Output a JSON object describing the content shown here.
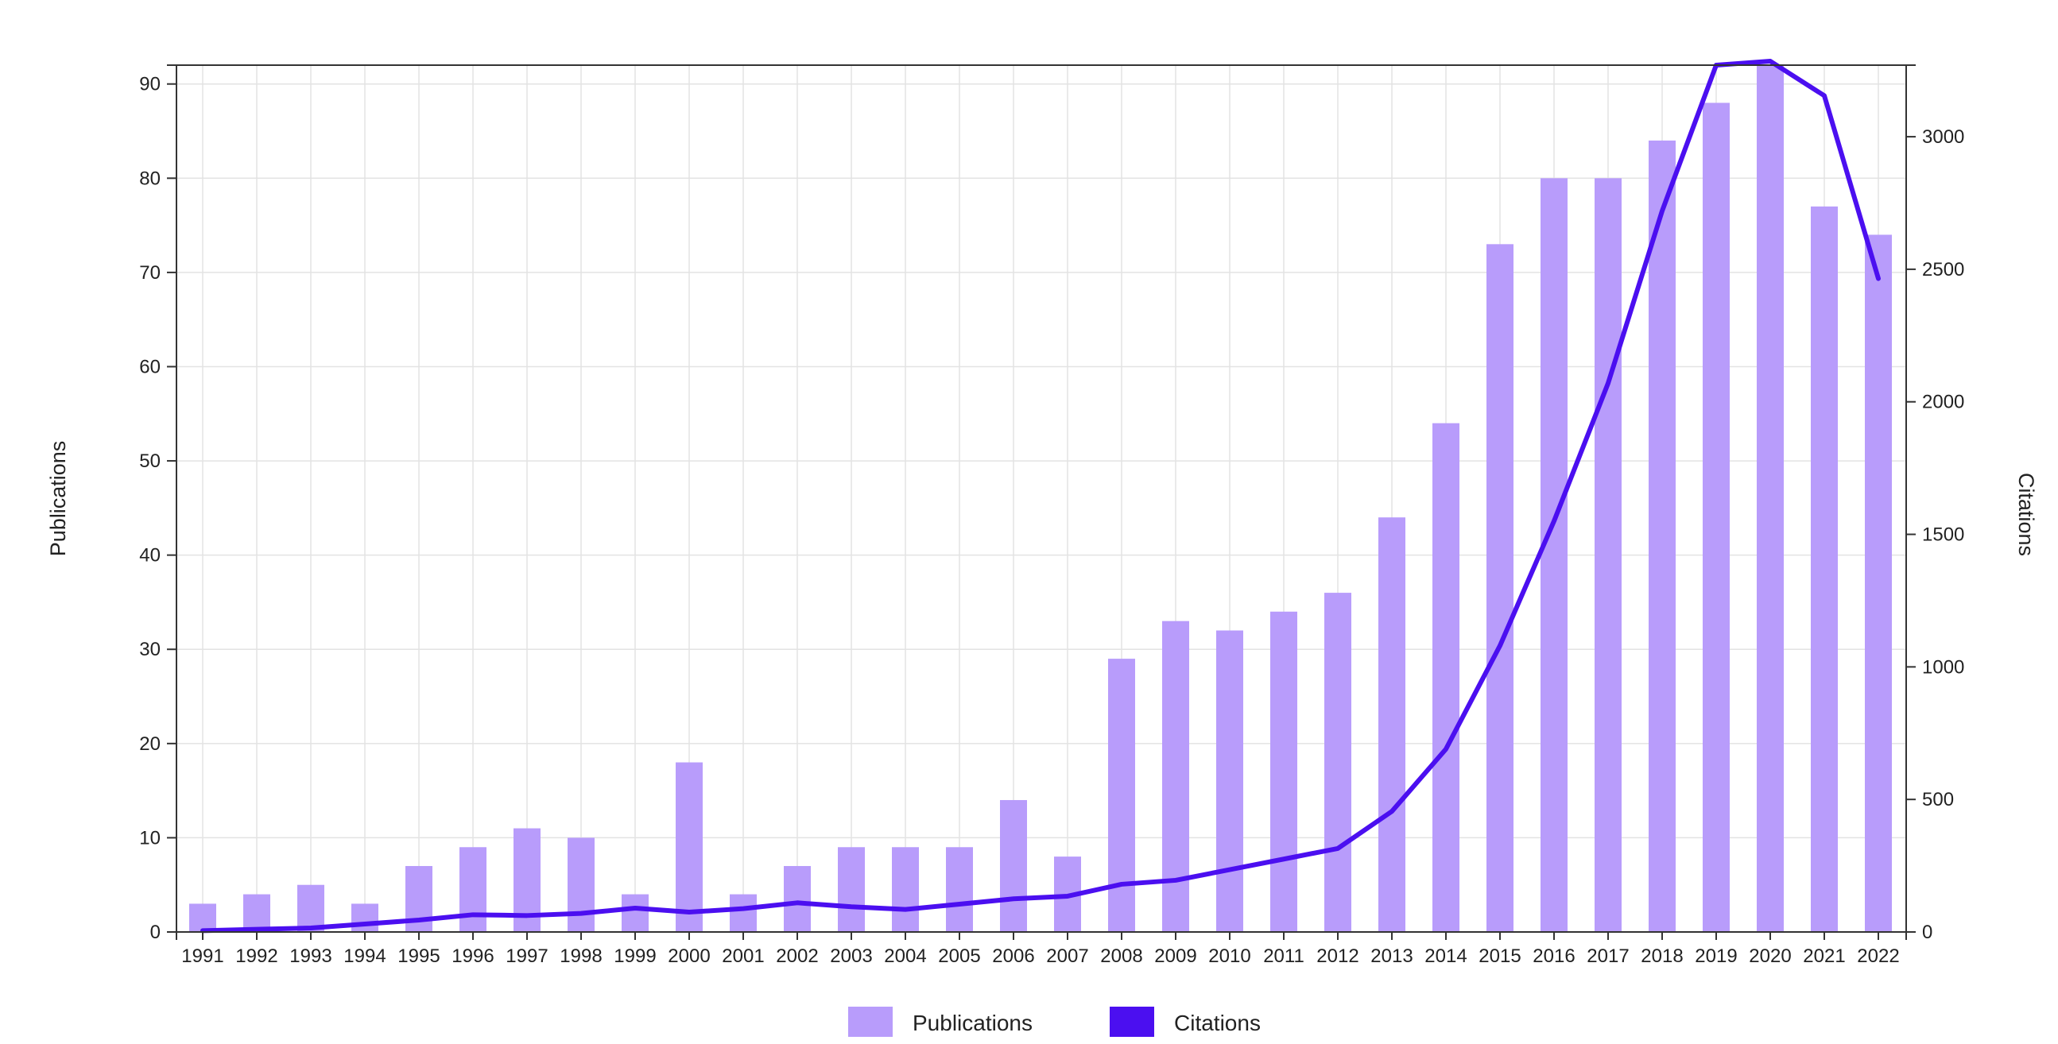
{
  "chart_data": {
    "type": "bar",
    "categories": [
      "1991",
      "1992",
      "1993",
      "1994",
      "1995",
      "1996",
      "1997",
      "1998",
      "1999",
      "2000",
      "2001",
      "2002",
      "2003",
      "2004",
      "2005",
      "2006",
      "2007",
      "2008",
      "2009",
      "2010",
      "2011",
      "2012",
      "2013",
      "2014",
      "2015",
      "2016",
      "2017",
      "2018",
      "2019",
      "2020",
      "2021",
      "2022"
    ],
    "series": [
      {
        "name": "Publications",
        "type": "bar",
        "axis": "left",
        "color": "#b89cfb",
        "values": [
          3,
          4,
          5,
          3,
          7,
          9,
          11,
          10,
          4,
          18,
          4,
          7,
          9,
          9,
          9,
          14,
          8,
          29,
          33,
          32,
          34,
          36,
          44,
          54,
          73,
          80,
          80,
          84,
          88,
          92,
          77,
          74
        ]
      },
      {
        "name": "Citations",
        "type": "line",
        "axis": "right",
        "color": "#4b0ff0",
        "values": [
          5,
          10,
          15,
          30,
          45,
          65,
          62,
          70,
          90,
          75,
          88,
          110,
          95,
          85,
          105,
          125,
          135,
          180,
          195,
          235,
          275,
          315,
          455,
          690,
          1080,
          1550,
          2070,
          2720,
          3270,
          3285,
          3155,
          2465
        ]
      }
    ],
    "y_left": {
      "label": "Publications",
      "ylim": [
        0,
        92
      ],
      "ticks": [
        0,
        10,
        20,
        30,
        40,
        50,
        60,
        70,
        80,
        90
      ]
    },
    "y_right": {
      "label": "Citations",
      "ylim": [
        0,
        3270
      ],
      "ticks": [
        0,
        500,
        1000,
        1500,
        2000,
        2500,
        3000
      ]
    },
    "xlabel": "",
    "grid": true,
    "legend": {
      "position": "bottom-center",
      "entries": [
        "Publications",
        "Citations"
      ]
    }
  }
}
